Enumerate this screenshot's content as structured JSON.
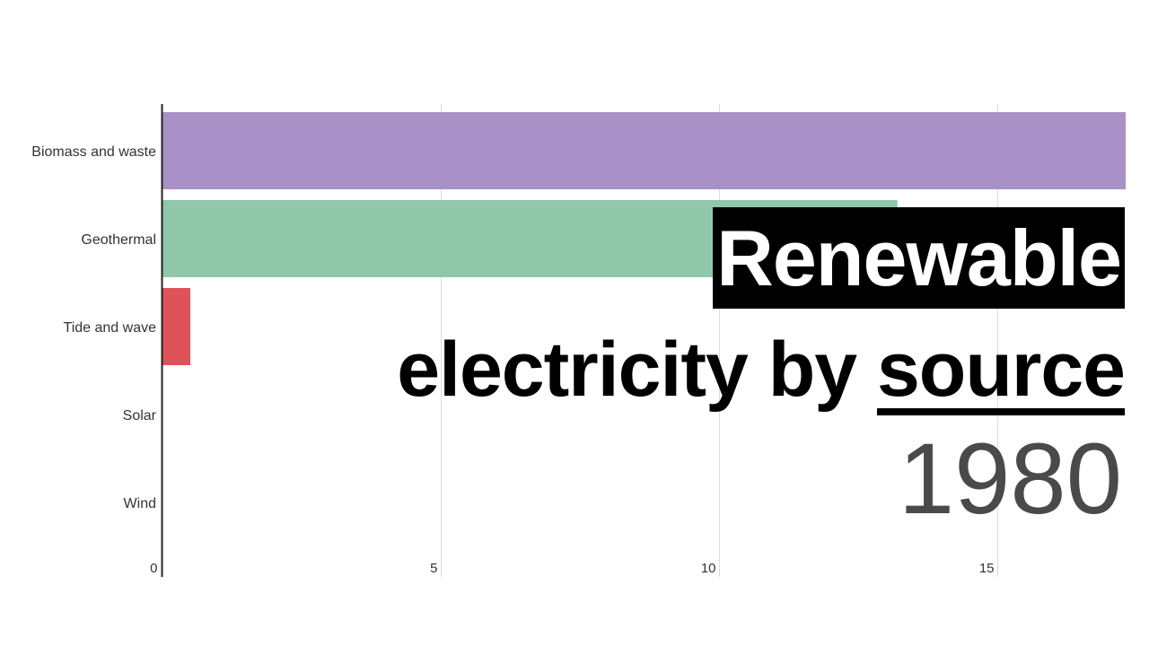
{
  "chart_data": {
    "type": "bar",
    "orientation": "horizontal",
    "categories": [
      "Biomass and waste",
      "Geothermal",
      "Tide and wave",
      "Solar",
      "Wind"
    ],
    "values": [
      17.3,
      13.2,
      0.5,
      0,
      0
    ],
    "colors": [
      "#a991c7",
      "#90c6aa",
      "#de525a",
      "#cccccc",
      "#cccccc"
    ],
    "xticks": [
      "0",
      "5",
      "10",
      "15"
    ],
    "xtick_values": [
      0,
      5,
      10,
      15
    ],
    "xlim": [
      0,
      17.3
    ],
    "grid": true,
    "title_line1": "Renewable",
    "title_line2_prefix": "electricity by ",
    "title_line2_underlined": "source",
    "year": "1980"
  }
}
